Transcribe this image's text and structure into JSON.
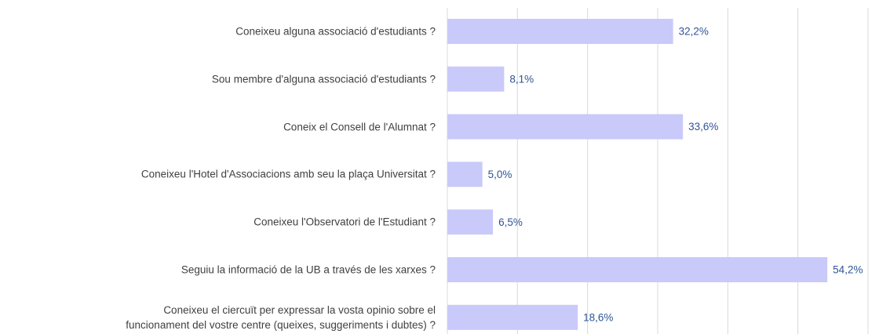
{
  "chart_data": {
    "type": "bar",
    "orientation": "horizontal",
    "categories": [
      "Coneixeu alguna associació d'estudiants ?",
      "Sou membre d'alguna associació d'estudiants ?",
      "Coneix el Consell de l'Alumnat ?",
      "Coneixeu l'Hotel d'Associacions amb seu la plaça Universitat ?",
      "Coneixeu l'Observatori de l'Estudiant ?",
      "Seguiu la informació de la UB a través de les xarxes ?",
      "Coneixeu el ciercuït per expressar la vosta opinio sobre el funcionament del vostre centre (queixes, suggeriments i dubtes) ?"
    ],
    "values": [
      32.2,
      8.1,
      33.6,
      5.0,
      6.5,
      54.2,
      18.6
    ],
    "value_labels": [
      "32,2%",
      "8,1%",
      "33,6%",
      "5,0%",
      "6,5%",
      "54,2%",
      "18,6%"
    ],
    "color": "#c9c9fa",
    "xlim": [
      0,
      60
    ],
    "xticks": [
      0,
      10,
      20,
      30,
      40,
      50,
      60
    ],
    "grid": true
  }
}
